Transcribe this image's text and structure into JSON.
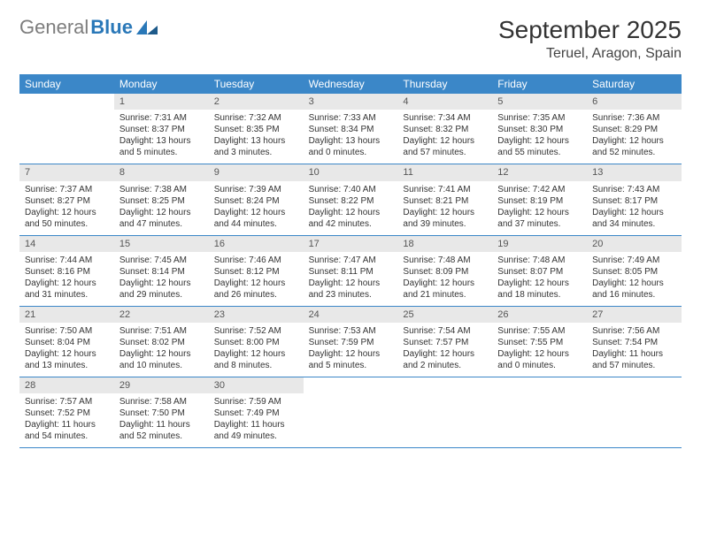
{
  "logo": {
    "gray": "General",
    "blue": "Blue"
  },
  "title": "September 2025",
  "location": "Teruel, Aragon, Spain",
  "colors": {
    "header_bg": "#3b87c8",
    "header_text": "#ffffff",
    "daynum_bg": "#e8e8e8",
    "border": "#3b87c8",
    "logo_gray": "#7d7d7d",
    "logo_blue": "#2a78b8"
  },
  "day_names": [
    "Sunday",
    "Monday",
    "Tuesday",
    "Wednesday",
    "Thursday",
    "Friday",
    "Saturday"
  ],
  "start_offset": 1,
  "days": [
    {
      "n": "1",
      "sunrise": "Sunrise: 7:31 AM",
      "sunset": "Sunset: 8:37 PM",
      "daylight": "Daylight: 13 hours and 5 minutes."
    },
    {
      "n": "2",
      "sunrise": "Sunrise: 7:32 AM",
      "sunset": "Sunset: 8:35 PM",
      "daylight": "Daylight: 13 hours and 3 minutes."
    },
    {
      "n": "3",
      "sunrise": "Sunrise: 7:33 AM",
      "sunset": "Sunset: 8:34 PM",
      "daylight": "Daylight: 13 hours and 0 minutes."
    },
    {
      "n": "4",
      "sunrise": "Sunrise: 7:34 AM",
      "sunset": "Sunset: 8:32 PM",
      "daylight": "Daylight: 12 hours and 57 minutes."
    },
    {
      "n": "5",
      "sunrise": "Sunrise: 7:35 AM",
      "sunset": "Sunset: 8:30 PM",
      "daylight": "Daylight: 12 hours and 55 minutes."
    },
    {
      "n": "6",
      "sunrise": "Sunrise: 7:36 AM",
      "sunset": "Sunset: 8:29 PM",
      "daylight": "Daylight: 12 hours and 52 minutes."
    },
    {
      "n": "7",
      "sunrise": "Sunrise: 7:37 AM",
      "sunset": "Sunset: 8:27 PM",
      "daylight": "Daylight: 12 hours and 50 minutes."
    },
    {
      "n": "8",
      "sunrise": "Sunrise: 7:38 AM",
      "sunset": "Sunset: 8:25 PM",
      "daylight": "Daylight: 12 hours and 47 minutes."
    },
    {
      "n": "9",
      "sunrise": "Sunrise: 7:39 AM",
      "sunset": "Sunset: 8:24 PM",
      "daylight": "Daylight: 12 hours and 44 minutes."
    },
    {
      "n": "10",
      "sunrise": "Sunrise: 7:40 AM",
      "sunset": "Sunset: 8:22 PM",
      "daylight": "Daylight: 12 hours and 42 minutes."
    },
    {
      "n": "11",
      "sunrise": "Sunrise: 7:41 AM",
      "sunset": "Sunset: 8:21 PM",
      "daylight": "Daylight: 12 hours and 39 minutes."
    },
    {
      "n": "12",
      "sunrise": "Sunrise: 7:42 AM",
      "sunset": "Sunset: 8:19 PM",
      "daylight": "Daylight: 12 hours and 37 minutes."
    },
    {
      "n": "13",
      "sunrise": "Sunrise: 7:43 AM",
      "sunset": "Sunset: 8:17 PM",
      "daylight": "Daylight: 12 hours and 34 minutes."
    },
    {
      "n": "14",
      "sunrise": "Sunrise: 7:44 AM",
      "sunset": "Sunset: 8:16 PM",
      "daylight": "Daylight: 12 hours and 31 minutes."
    },
    {
      "n": "15",
      "sunrise": "Sunrise: 7:45 AM",
      "sunset": "Sunset: 8:14 PM",
      "daylight": "Daylight: 12 hours and 29 minutes."
    },
    {
      "n": "16",
      "sunrise": "Sunrise: 7:46 AM",
      "sunset": "Sunset: 8:12 PM",
      "daylight": "Daylight: 12 hours and 26 minutes."
    },
    {
      "n": "17",
      "sunrise": "Sunrise: 7:47 AM",
      "sunset": "Sunset: 8:11 PM",
      "daylight": "Daylight: 12 hours and 23 minutes."
    },
    {
      "n": "18",
      "sunrise": "Sunrise: 7:48 AM",
      "sunset": "Sunset: 8:09 PM",
      "daylight": "Daylight: 12 hours and 21 minutes."
    },
    {
      "n": "19",
      "sunrise": "Sunrise: 7:48 AM",
      "sunset": "Sunset: 8:07 PM",
      "daylight": "Daylight: 12 hours and 18 minutes."
    },
    {
      "n": "20",
      "sunrise": "Sunrise: 7:49 AM",
      "sunset": "Sunset: 8:05 PM",
      "daylight": "Daylight: 12 hours and 16 minutes."
    },
    {
      "n": "21",
      "sunrise": "Sunrise: 7:50 AM",
      "sunset": "Sunset: 8:04 PM",
      "daylight": "Daylight: 12 hours and 13 minutes."
    },
    {
      "n": "22",
      "sunrise": "Sunrise: 7:51 AM",
      "sunset": "Sunset: 8:02 PM",
      "daylight": "Daylight: 12 hours and 10 minutes."
    },
    {
      "n": "23",
      "sunrise": "Sunrise: 7:52 AM",
      "sunset": "Sunset: 8:00 PM",
      "daylight": "Daylight: 12 hours and 8 minutes."
    },
    {
      "n": "24",
      "sunrise": "Sunrise: 7:53 AM",
      "sunset": "Sunset: 7:59 PM",
      "daylight": "Daylight: 12 hours and 5 minutes."
    },
    {
      "n": "25",
      "sunrise": "Sunrise: 7:54 AM",
      "sunset": "Sunset: 7:57 PM",
      "daylight": "Daylight: 12 hours and 2 minutes."
    },
    {
      "n": "26",
      "sunrise": "Sunrise: 7:55 AM",
      "sunset": "Sunset: 7:55 PM",
      "daylight": "Daylight: 12 hours and 0 minutes."
    },
    {
      "n": "27",
      "sunrise": "Sunrise: 7:56 AM",
      "sunset": "Sunset: 7:54 PM",
      "daylight": "Daylight: 11 hours and 57 minutes."
    },
    {
      "n": "28",
      "sunrise": "Sunrise: 7:57 AM",
      "sunset": "Sunset: 7:52 PM",
      "daylight": "Daylight: 11 hours and 54 minutes."
    },
    {
      "n": "29",
      "sunrise": "Sunrise: 7:58 AM",
      "sunset": "Sunset: 7:50 PM",
      "daylight": "Daylight: 11 hours and 52 minutes."
    },
    {
      "n": "30",
      "sunrise": "Sunrise: 7:59 AM",
      "sunset": "Sunset: 7:49 PM",
      "daylight": "Daylight: 11 hours and 49 minutes."
    }
  ]
}
